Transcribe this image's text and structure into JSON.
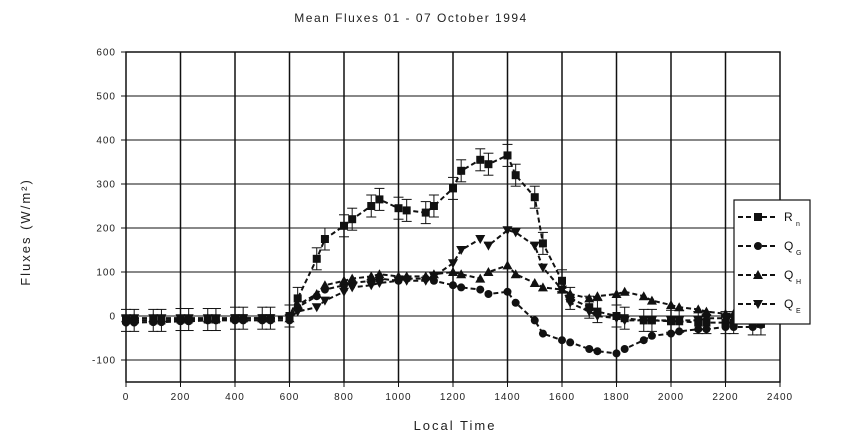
{
  "chart_data": {
    "type": "line",
    "title": "Mean Fluxes 01 - 07 October 1994",
    "xlabel": "Local Time",
    "ylabel": "Fluxes (W/m²)",
    "xlim": [
      0,
      2400
    ],
    "ylim": [
      -150,
      600
    ],
    "xticks": [
      "0",
      "200",
      "400",
      "600",
      "800",
      "1000",
      "1200",
      "1400",
      "1600",
      "1800",
      "2000",
      "2200",
      "2400"
    ],
    "yticks": [
      "-100",
      "0",
      "100",
      "200",
      "300",
      "400",
      "500",
      "600"
    ],
    "grid": true,
    "legend_position": "right",
    "x": [
      0,
      30,
      100,
      130,
      200,
      230,
      300,
      330,
      400,
      430,
      500,
      530,
      600,
      630,
      700,
      730,
      800,
      830,
      900,
      930,
      1000,
      1030,
      1100,
      1130,
      1200,
      1230,
      1300,
      1330,
      1400,
      1430,
      1500,
      1530,
      1600,
      1630,
      1700,
      1730,
      1800,
      1830,
      1900,
      1930,
      2000,
      2030,
      2100,
      2130,
      2200,
      2230,
      2300,
      2330
    ],
    "series": [
      {
        "name": "R",
        "subscript": "n",
        "marker": "square",
        "values": [
          -10,
          -10,
          -10,
          -10,
          -8,
          -8,
          -8,
          -8,
          -5,
          -5,
          -5,
          -5,
          0,
          40,
          130,
          175,
          205,
          220,
          250,
          265,
          245,
          240,
          235,
          250,
          290,
          330,
          355,
          345,
          365,
          320,
          270,
          165,
          80,
          40,
          20,
          10,
          0,
          -5,
          -10,
          -10,
          -12,
          -12,
          -15,
          -15,
          -15,
          -15,
          -18,
          -18
        ]
      },
      {
        "name": "Q",
        "subscript": "G",
        "marker": "circle",
        "values": [
          -15,
          -15,
          -14,
          -14,
          -12,
          -12,
          -10,
          -10,
          -10,
          -10,
          -10,
          -10,
          -10,
          20,
          45,
          60,
          70,
          75,
          80,
          85,
          80,
          85,
          85,
          80,
          70,
          65,
          60,
          50,
          55,
          30,
          -10,
          -40,
          -55,
          -60,
          -75,
          -80,
          -85,
          -75,
          -55,
          -45,
          -40,
          -35,
          -30,
          -30,
          -25,
          -25,
          -25,
          -20
        ]
      },
      {
        "name": "Q",
        "subscript": "H",
        "marker": "triangle-up",
        "values": [
          -5,
          -5,
          -5,
          -5,
          -5,
          -5,
          -5,
          -5,
          -5,
          -5,
          -5,
          -5,
          -5,
          25,
          50,
          70,
          80,
          85,
          90,
          95,
          90,
          90,
          90,
          95,
          100,
          95,
          85,
          100,
          115,
          95,
          75,
          65,
          60,
          50,
          40,
          45,
          50,
          55,
          45,
          35,
          25,
          20,
          15,
          10,
          5,
          5,
          5,
          5
        ]
      },
      {
        "name": "Q",
        "subscript": "E",
        "marker": "triangle-down",
        "values": [
          -5,
          -5,
          -5,
          -5,
          -5,
          -5,
          -5,
          -5,
          -5,
          -5,
          -5,
          -5,
          -5,
          10,
          20,
          35,
          55,
          65,
          70,
          75,
          80,
          80,
          80,
          90,
          120,
          150,
          175,
          160,
          195,
          190,
          160,
          110,
          60,
          30,
          10,
          0,
          -5,
          -10,
          -10,
          -10,
          -10,
          -10,
          -10,
          -5,
          -5,
          -5,
          -5,
          -5
        ]
      }
    ]
  }
}
